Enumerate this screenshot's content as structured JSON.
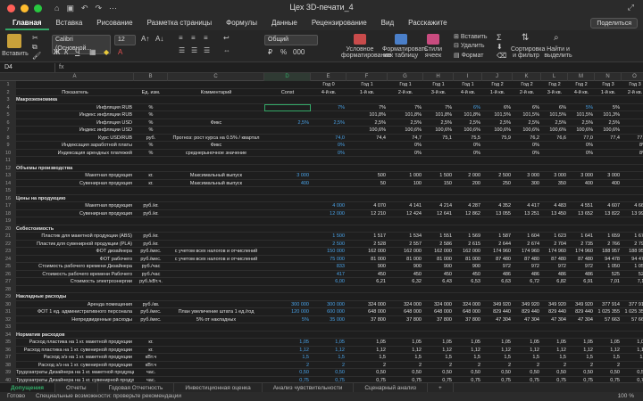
{
  "window": {
    "title": "Цех 3D-печати_4",
    "right_icon": "⤢"
  },
  "ribbon_tabs": [
    "Главная",
    "Вставка",
    "Рисование",
    "Разметка страницы",
    "Формулы",
    "Данные",
    "Рецензирование",
    "Вид",
    "Расскажите"
  ],
  "share_label": "Поделиться",
  "ribbon": {
    "paste": "Вставить",
    "font_name": "Calibri (Основной...",
    "font_size": "12",
    "number_format": "Общий",
    "cond_format": "Условное форматирование",
    "format_table": "Форматировать как таблицу",
    "cell_styles": "Стили ячеек",
    "insert": "Вставить",
    "delete": "Удалить",
    "format": "Формат",
    "sort": "Сортировка и фильтр",
    "find": "Найти и выделить"
  },
  "formula_bar": {
    "cell": "D4",
    "fx": "fx"
  },
  "columns": [
    "A",
    "B",
    "C",
    "D",
    "E",
    "F",
    "G",
    "H",
    "I",
    "J",
    "K",
    "L",
    "M",
    "N",
    "O"
  ],
  "header_row": {
    "a": "Показатель",
    "b": "Ед. изм.",
    "c": "Комментарий",
    "d": "Const",
    "periods": [
      [
        "Год 0",
        "4-й кв."
      ],
      [
        "Год 1",
        "1-й кв."
      ],
      [
        "Год 1",
        "2-й кв."
      ],
      [
        "Год 1",
        "3-й кв."
      ],
      [
        "Год 1",
        "4-й кв."
      ],
      [
        "Год 2",
        "1-й кв."
      ],
      [
        "Год 2",
        "2-й кв."
      ],
      [
        "Год 2",
        "3-й кв."
      ],
      [
        "Год 2",
        "4-й кв."
      ],
      [
        "Год 3",
        "1-й кв."
      ],
      [
        "Год 3",
        "2-й кв."
      ]
    ]
  },
  "rows": [
    {
      "n": "3",
      "a": "Макроэкономика",
      "section": true
    },
    {
      "n": "4",
      "a": "Инфляция RUB",
      "b": "%",
      "vals": [
        "",
        "7%",
        "7%",
        "7%",
        "7%",
        "6%",
        "6%",
        "6%",
        "6%",
        "5%",
        "5%"
      ],
      "blue": [
        0,
        1,
        0,
        0,
        0,
        1,
        0,
        0,
        0,
        1,
        0
      ]
    },
    {
      "n": "5",
      "a": "Индекс инфляции RUB",
      "b": "%",
      "vals": [
        "",
        "",
        "101,8%",
        "101,8%",
        "101,8%",
        "101,8%",
        "101,5%",
        "101,5%",
        "101,5%",
        "101,5%",
        "101,3%"
      ]
    },
    {
      "n": "6",
      "a": "Инфляция USD",
      "b": "%",
      "c": "Фикс",
      "d": "2,5%",
      "vals": [
        "",
        "2,5%",
        "2,5%",
        "2,5%",
        "2,5%",
        "2,5%",
        "2,5%",
        "2,5%",
        "2,5%",
        "2,5%",
        "2,5%"
      ]
    },
    {
      "n": "7",
      "a": "Индекс инфляции USD",
      "b": "%",
      "vals": [
        "",
        "",
        "100,6%",
        "100,6%",
        "100,6%",
        "100,6%",
        "100,6%",
        "100,6%",
        "100,6%",
        "100,6%",
        "100,6%"
      ]
    },
    {
      "n": "8",
      "a": "Курс USD/RUB",
      "b": "руб.",
      "c": "Прогноз: рост курса на 0.5% / квартал",
      "vals": [
        "",
        "74,0",
        "74,4",
        "74,7",
        "75,1",
        "75,5",
        "75,9",
        "76,2",
        "76,6",
        "77,0",
        "77,4",
        "77,8"
      ],
      "blue": [
        1,
        1
      ]
    },
    {
      "n": "9",
      "a": "Индексация заработной платы",
      "b": "%",
      "c": "Фикс",
      "vals": [
        "",
        "0%",
        "",
        "0%",
        "",
        "0%",
        "",
        "0%",
        "",
        "0%",
        "",
        "8%"
      ],
      "blue": [
        1,
        1
      ]
    },
    {
      "n": "10",
      "a": "Индексация арендных платежей",
      "b": "%",
      "c": "среднерыночное значение",
      "vals": [
        "",
        "0%",
        "",
        "0%",
        "",
        "0%",
        "",
        "0%",
        "",
        "0%",
        "",
        "8%"
      ],
      "blue": [
        1,
        1
      ]
    },
    {
      "n": "11"
    },
    {
      "n": "12",
      "a": "Объемы производства",
      "section": true
    },
    {
      "n": "13",
      "a": "Макетная продукция",
      "b": "кг.",
      "c": "Максимальный выпуск",
      "d": "3 000",
      "vals": [
        "",
        "",
        "500",
        "1 000",
        "1 500",
        "2 000",
        "2 500",
        "3 000",
        "3 000",
        "3 000",
        "3 000"
      ]
    },
    {
      "n": "14",
      "a": "Сувенирная продукция",
      "b": "кг.",
      "c": "Максимальный выпуск",
      "d": "400",
      "vals": [
        "",
        "",
        "50",
        "100",
        "150",
        "200",
        "250",
        "300",
        "350",
        "400",
        "400"
      ]
    },
    {
      "n": "15"
    },
    {
      "n": "16",
      "a": "Цены на продукцию",
      "section": true
    },
    {
      "n": "17",
      "a": "Макетная продукция",
      "b": "руб./кг.",
      "vals": [
        "",
        "4 000",
        "4 070",
        "4 141",
        "4 214",
        "4 287",
        "4 352",
        "4 417",
        "4 483",
        "4 551",
        "4 607",
        "4 665"
      ]
    },
    {
      "n": "18",
      "a": "Сувенирная продукция",
      "b": "руб./кг.",
      "vals": [
        "",
        "12 000",
        "12 210",
        "12 424",
        "12 641",
        "12 862",
        "13 055",
        "13 251",
        "13 450",
        "13 652",
        "13 822",
        "13 995"
      ]
    },
    {
      "n": "19"
    },
    {
      "n": "20",
      "a": "Себестоимость",
      "section": true
    },
    {
      "n": "21",
      "a": "Пластик для макетной продукции (ABS)",
      "b": "руб./кг.",
      "vals": [
        "",
        "1 500",
        "1 517",
        "1 534",
        "1 551",
        "1 569",
        "1 587",
        "1 604",
        "1 623",
        "1 641",
        "1 659",
        "1 678"
      ]
    },
    {
      "n": "22",
      "a": "Пластик для сувенирной продукции (PLA)",
      "b": "руб./кг.",
      "vals": [
        "",
        "2 500",
        "2 528",
        "2 557",
        "2 586",
        "2 615",
        "2 644",
        "2 674",
        "2 704",
        "2 735",
        "2 766",
        "2 797"
      ]
    },
    {
      "n": "23",
      "a": "ФОТ дизайнера",
      "b": "руб./мес.",
      "c": "с учетом всех налогов и отчислений",
      "vals": [
        "",
        "150 000",
        "162 000",
        "162 000",
        "162 000",
        "162 000",
        "174 960",
        "174 960",
        "174 960",
        "174 960",
        "188 957",
        "188 957"
      ]
    },
    {
      "n": "24",
      "a": "ФОТ рабочего",
      "b": "руб./мес.",
      "c": "с учетом всех налогов и отчислений",
      "vals": [
        "",
        "75 000",
        "81 000",
        "81 000",
        "81 000",
        "81 000",
        "87 480",
        "87 480",
        "87 480",
        "87 480",
        "94 478",
        "94 478"
      ]
    },
    {
      "n": "25",
      "a": "Стоимость рабочего времени Дизайнера",
      "b": "руб./час",
      "vals": [
        "",
        "833",
        "900",
        "900",
        "900",
        "900",
        "972",
        "972",
        "972",
        "972",
        "1 050",
        "1 050"
      ]
    },
    {
      "n": "26",
      "a": "Стоимость рабочего времени Рабочего",
      "b": "руб./час",
      "vals": [
        "",
        "417",
        "450",
        "450",
        "450",
        "450",
        "486",
        "486",
        "486",
        "486",
        "525",
        "525"
      ]
    },
    {
      "n": "27",
      "a": "Стоимость электроэнергии",
      "b": "руб./кВт.ч.",
      "vals": [
        "",
        "6,00",
        "6,21",
        "6,32",
        "6,43",
        "6,53",
        "6,63",
        "6,72",
        "6,82",
        "6,91",
        "7,01",
        "7,11"
      ]
    },
    {
      "n": "28"
    },
    {
      "n": "29",
      "a": "Накладные расходы",
      "section": true
    },
    {
      "n": "30",
      "a": "Аренда помещения",
      "b": "руб./кв.",
      "d": "300 000",
      "vals": [
        "",
        "300 000",
        "324 000",
        "324 000",
        "324 000",
        "324 000",
        "349 920",
        "349 920",
        "349 920",
        "349 920",
        "377 914",
        "377 914"
      ]
    },
    {
      "n": "31",
      "a": "ФОТ 1 ед. административного персонала",
      "b": "руб./мес.",
      "c": "План увеличение штата 1 ед./год",
      "d": "120 000",
      "vals": [
        "",
        "600 000",
        "648 000",
        "648 000",
        "648 000",
        "648 000",
        "829 440",
        "829 440",
        "829 440",
        "829 440",
        "1 025 355",
        "1 025 355"
      ]
    },
    {
      "n": "32",
      "a": "Непредвиденные расходы",
      "b": "руб./мес.",
      "c": "5% от накладных",
      "d": "5%",
      "vals": [
        "",
        "35 000",
        "37 800",
        "37 800",
        "37 800",
        "37 800",
        "47 304",
        "47 304",
        "47 304",
        "47 304",
        "57 663",
        "57 663"
      ]
    },
    {
      "n": "33"
    },
    {
      "n": "34",
      "a": "Норматив расходов",
      "section": true
    },
    {
      "n": "35",
      "a": "Расход пластика на 1 кг. макетной продукции",
      "b": "кг.",
      "d": "1,05",
      "vals": [
        "",
        "1,05",
        "1,05",
        "1,05",
        "1,05",
        "1,05",
        "1,05",
        "1,05",
        "1,05",
        "1,05",
        "1,05",
        "1,05"
      ]
    },
    {
      "n": "36",
      "a": "Расход пластика на 1 кг. сувенирной продукции",
      "b": "кг.",
      "d": "1,12",
      "vals": [
        "",
        "1,12",
        "1,12",
        "1,12",
        "1,12",
        "1,12",
        "1,12",
        "1,12",
        "1,12",
        "1,12",
        "1,12",
        "1,12"
      ]
    },
    {
      "n": "37",
      "a": "Расход э/э на 1 кг. макетной продукции",
      "b": "кВт.ч",
      "d": "1,5",
      "vals": [
        "",
        "1,5",
        "1,5",
        "1,5",
        "1,5",
        "1,5",
        "1,5",
        "1,5",
        "1,5",
        "1,5",
        "1,5",
        "1,5"
      ]
    },
    {
      "n": "38",
      "a": "Расход э/э на 1 кг. сувенирной продукции",
      "b": "кВт.ч",
      "d": "2",
      "vals": [
        "",
        "2",
        "2",
        "2",
        "2",
        "2",
        "2",
        "2",
        "2",
        "2",
        "2",
        "2"
      ]
    },
    {
      "n": "39",
      "a": "Трудозатраты Дизайнера на 1 кг. макетной продукции",
      "b": "час.",
      "d": "0,50",
      "vals": [
        "",
        "0,50",
        "0,50",
        "0,50",
        "0,50",
        "0,50",
        "0,50",
        "0,50",
        "0,50",
        "0,50",
        "0,50",
        "0,50"
      ]
    },
    {
      "n": "40",
      "a": "Трудозатраты Дизайнера на 1 кг. сувенирной продукции",
      "b": "час.",
      "d": "0,75",
      "vals": [
        "",
        "0,75",
        "0,75",
        "0,75",
        "0,75",
        "0,75",
        "0,75",
        "0,75",
        "0,75",
        "0,75",
        "0,75",
        "0,75"
      ]
    },
    {
      "n": "41",
      "a": "Трудозатраты Рабочего на 1 кг. макетной продукции",
      "b": "час.",
      "d": "0,50",
      "vals": [
        "",
        "0,50",
        "0,50",
        "0,50",
        "0,50",
        "0,50",
        "0,50",
        "0,50",
        "0,50",
        "0,50",
        "0,50",
        "0,50"
      ]
    }
  ],
  "sheet_tabs": [
    "Допущения",
    "Отчеты",
    "Годовая Отчетность",
    "Инвестиционная оценка",
    "Анализ чувствительности",
    "Сценарный анализ",
    "+"
  ],
  "status": {
    "ready": "Готово",
    "accessibility": "Специальные возможности: проверьте рекомендации",
    "zoom": "100 %"
  }
}
